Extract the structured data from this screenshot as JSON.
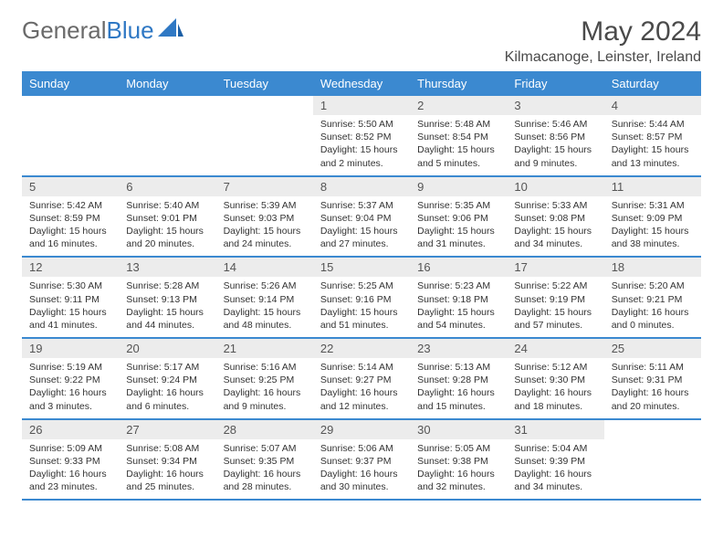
{
  "brand": {
    "part1": "General",
    "part2": "Blue"
  },
  "title": "May 2024",
  "location": "Kilmacanoge, Leinster, Ireland",
  "colors": {
    "header_bg": "#3b89d0",
    "header_text": "#ffffff",
    "daynum_bg": "#ececec",
    "border": "#3b89d0",
    "title_color": "#4a4a4a",
    "brand_gray": "#6a6a6a",
    "brand_blue": "#2f78c4"
  },
  "days_of_week": [
    "Sunday",
    "Monday",
    "Tuesday",
    "Wednesday",
    "Thursday",
    "Friday",
    "Saturday"
  ],
  "weeks": [
    [
      {
        "num": "",
        "lines": [
          "",
          "",
          "",
          ""
        ]
      },
      {
        "num": "",
        "lines": [
          "",
          "",
          "",
          ""
        ]
      },
      {
        "num": "",
        "lines": [
          "",
          "",
          "",
          ""
        ]
      },
      {
        "num": "1",
        "lines": [
          "Sunrise: 5:50 AM",
          "Sunset: 8:52 PM",
          "Daylight: 15 hours",
          "and 2 minutes."
        ]
      },
      {
        "num": "2",
        "lines": [
          "Sunrise: 5:48 AM",
          "Sunset: 8:54 PM",
          "Daylight: 15 hours",
          "and 5 minutes."
        ]
      },
      {
        "num": "3",
        "lines": [
          "Sunrise: 5:46 AM",
          "Sunset: 8:56 PM",
          "Daylight: 15 hours",
          "and 9 minutes."
        ]
      },
      {
        "num": "4",
        "lines": [
          "Sunrise: 5:44 AM",
          "Sunset: 8:57 PM",
          "Daylight: 15 hours",
          "and 13 minutes."
        ]
      }
    ],
    [
      {
        "num": "5",
        "lines": [
          "Sunrise: 5:42 AM",
          "Sunset: 8:59 PM",
          "Daylight: 15 hours",
          "and 16 minutes."
        ]
      },
      {
        "num": "6",
        "lines": [
          "Sunrise: 5:40 AM",
          "Sunset: 9:01 PM",
          "Daylight: 15 hours",
          "and 20 minutes."
        ]
      },
      {
        "num": "7",
        "lines": [
          "Sunrise: 5:39 AM",
          "Sunset: 9:03 PM",
          "Daylight: 15 hours",
          "and 24 minutes."
        ]
      },
      {
        "num": "8",
        "lines": [
          "Sunrise: 5:37 AM",
          "Sunset: 9:04 PM",
          "Daylight: 15 hours",
          "and 27 minutes."
        ]
      },
      {
        "num": "9",
        "lines": [
          "Sunrise: 5:35 AM",
          "Sunset: 9:06 PM",
          "Daylight: 15 hours",
          "and 31 minutes."
        ]
      },
      {
        "num": "10",
        "lines": [
          "Sunrise: 5:33 AM",
          "Sunset: 9:08 PM",
          "Daylight: 15 hours",
          "and 34 minutes."
        ]
      },
      {
        "num": "11",
        "lines": [
          "Sunrise: 5:31 AM",
          "Sunset: 9:09 PM",
          "Daylight: 15 hours",
          "and 38 minutes."
        ]
      }
    ],
    [
      {
        "num": "12",
        "lines": [
          "Sunrise: 5:30 AM",
          "Sunset: 9:11 PM",
          "Daylight: 15 hours",
          "and 41 minutes."
        ]
      },
      {
        "num": "13",
        "lines": [
          "Sunrise: 5:28 AM",
          "Sunset: 9:13 PM",
          "Daylight: 15 hours",
          "and 44 minutes."
        ]
      },
      {
        "num": "14",
        "lines": [
          "Sunrise: 5:26 AM",
          "Sunset: 9:14 PM",
          "Daylight: 15 hours",
          "and 48 minutes."
        ]
      },
      {
        "num": "15",
        "lines": [
          "Sunrise: 5:25 AM",
          "Sunset: 9:16 PM",
          "Daylight: 15 hours",
          "and 51 minutes."
        ]
      },
      {
        "num": "16",
        "lines": [
          "Sunrise: 5:23 AM",
          "Sunset: 9:18 PM",
          "Daylight: 15 hours",
          "and 54 minutes."
        ]
      },
      {
        "num": "17",
        "lines": [
          "Sunrise: 5:22 AM",
          "Sunset: 9:19 PM",
          "Daylight: 15 hours",
          "and 57 minutes."
        ]
      },
      {
        "num": "18",
        "lines": [
          "Sunrise: 5:20 AM",
          "Sunset: 9:21 PM",
          "Daylight: 16 hours",
          "and 0 minutes."
        ]
      }
    ],
    [
      {
        "num": "19",
        "lines": [
          "Sunrise: 5:19 AM",
          "Sunset: 9:22 PM",
          "Daylight: 16 hours",
          "and 3 minutes."
        ]
      },
      {
        "num": "20",
        "lines": [
          "Sunrise: 5:17 AM",
          "Sunset: 9:24 PM",
          "Daylight: 16 hours",
          "and 6 minutes."
        ]
      },
      {
        "num": "21",
        "lines": [
          "Sunrise: 5:16 AM",
          "Sunset: 9:25 PM",
          "Daylight: 16 hours",
          "and 9 minutes."
        ]
      },
      {
        "num": "22",
        "lines": [
          "Sunrise: 5:14 AM",
          "Sunset: 9:27 PM",
          "Daylight: 16 hours",
          "and 12 minutes."
        ]
      },
      {
        "num": "23",
        "lines": [
          "Sunrise: 5:13 AM",
          "Sunset: 9:28 PM",
          "Daylight: 16 hours",
          "and 15 minutes."
        ]
      },
      {
        "num": "24",
        "lines": [
          "Sunrise: 5:12 AM",
          "Sunset: 9:30 PM",
          "Daylight: 16 hours",
          "and 18 minutes."
        ]
      },
      {
        "num": "25",
        "lines": [
          "Sunrise: 5:11 AM",
          "Sunset: 9:31 PM",
          "Daylight: 16 hours",
          "and 20 minutes."
        ]
      }
    ],
    [
      {
        "num": "26",
        "lines": [
          "Sunrise: 5:09 AM",
          "Sunset: 9:33 PM",
          "Daylight: 16 hours",
          "and 23 minutes."
        ]
      },
      {
        "num": "27",
        "lines": [
          "Sunrise: 5:08 AM",
          "Sunset: 9:34 PM",
          "Daylight: 16 hours",
          "and 25 minutes."
        ]
      },
      {
        "num": "28",
        "lines": [
          "Sunrise: 5:07 AM",
          "Sunset: 9:35 PM",
          "Daylight: 16 hours",
          "and 28 minutes."
        ]
      },
      {
        "num": "29",
        "lines": [
          "Sunrise: 5:06 AM",
          "Sunset: 9:37 PM",
          "Daylight: 16 hours",
          "and 30 minutes."
        ]
      },
      {
        "num": "30",
        "lines": [
          "Sunrise: 5:05 AM",
          "Sunset: 9:38 PM",
          "Daylight: 16 hours",
          "and 32 minutes."
        ]
      },
      {
        "num": "31",
        "lines": [
          "Sunrise: 5:04 AM",
          "Sunset: 9:39 PM",
          "Daylight: 16 hours",
          "and 34 minutes."
        ]
      },
      {
        "num": "",
        "lines": [
          "",
          "",
          "",
          ""
        ]
      }
    ]
  ]
}
